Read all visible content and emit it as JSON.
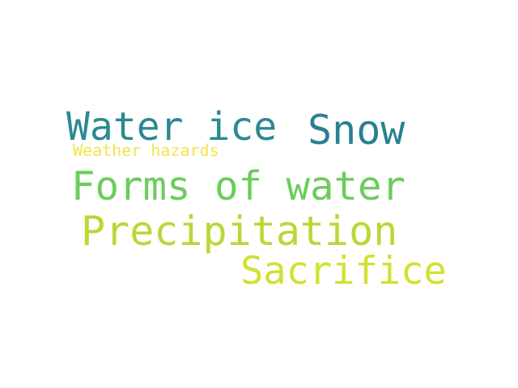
{
  "words": [
    {
      "text": "Water ice",
      "color": "#2a8a90"
    },
    {
      "text": "Snow",
      "color": "#2a8090"
    },
    {
      "text": "Weather hazards",
      "color": "#f5e44a"
    },
    {
      "text": "Forms of water",
      "color": "#6ccc5c"
    },
    {
      "text": "Precipitation",
      "color": "#b8d836"
    },
    {
      "text": "Sacrifice",
      "color": "#d2e030"
    }
  ]
}
